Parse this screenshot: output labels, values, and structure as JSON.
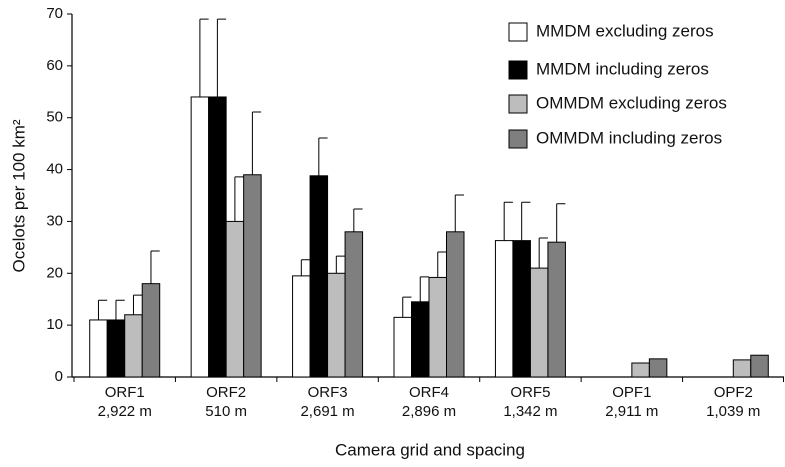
{
  "chart_data": {
    "type": "bar",
    "x_label": "Camera grid and spacing",
    "y_label": "Ocelots per 100 km²",
    "categories": [
      "ORF1",
      "ORF2",
      "ORF3",
      "ORF4",
      "ORF5",
      "OPF1",
      "OPF2"
    ],
    "category_sublabels": [
      "2,922 m",
      "510 m",
      "2,691 m",
      "2,896 m",
      "1,342 m",
      "2,911 m",
      "1,039 m"
    ],
    "series": [
      {
        "name": "MMDM excluding zeros",
        "color": "#ffffff",
        "values": [
          11,
          54,
          19.5,
          11.5,
          26.3,
          null,
          null
        ],
        "errors": [
          3.8,
          15,
          3.1,
          3.9,
          7.4,
          null,
          null
        ]
      },
      {
        "name": "MMDM including zeros",
        "color": "#000000",
        "values": [
          11,
          54,
          38.8,
          14.5,
          26.3,
          null,
          null
        ],
        "errors": [
          3.8,
          15,
          7.3,
          4.8,
          7.4,
          null,
          null
        ]
      },
      {
        "name": "OMMDM excluding zeros",
        "color": "#bdbdbd",
        "values": [
          12,
          30,
          20,
          19.2,
          21,
          2.7,
          3.3
        ],
        "errors": [
          3.8,
          8.6,
          3.3,
          4.9,
          5.8,
          null,
          null
        ]
      },
      {
        "name": "OMMDM including zeros",
        "color": "#7f7f7f",
        "values": [
          18,
          39,
          28,
          28,
          26,
          3.5,
          4.2
        ],
        "errors": [
          6.3,
          12.1,
          4.4,
          7.1,
          7.4,
          null,
          null
        ]
      }
    ],
    "ylim": [
      0,
      70
    ],
    "yticks": [
      0,
      10,
      20,
      30,
      40,
      50,
      60,
      70
    ],
    "legend": "top-right",
    "grid": false
  }
}
